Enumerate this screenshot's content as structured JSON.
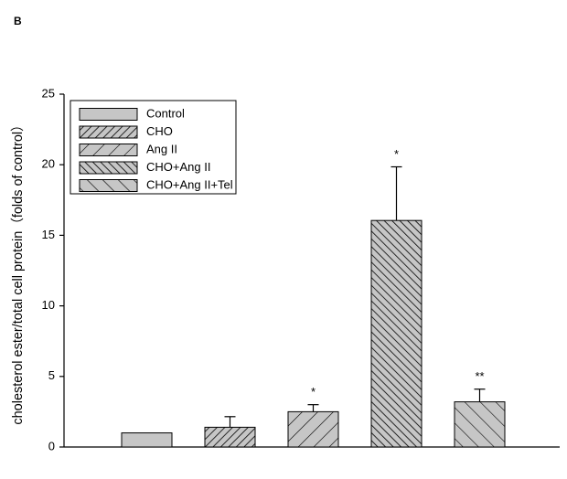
{
  "panel_label": "B",
  "chart_data": {
    "type": "bar",
    "ylabel": "cholesterol  ester/total cell protein（folds of control）",
    "categories": [
      "Control",
      "CHO",
      "Ang II",
      "CHO+Ang II",
      "CHO+Ang II+Tel"
    ],
    "values": [
      1.0,
      1.4,
      2.5,
      16.05,
      3.2
    ],
    "errors": [
      0,
      0.75,
      0.5,
      3.8,
      0.9
    ],
    "annotations": [
      null,
      null,
      "*",
      "*",
      "**"
    ],
    "patterns": [
      "solid",
      "dense-up",
      "sparse-up",
      "dense-down",
      "sparse-down"
    ],
    "color": "#c6c6c6",
    "ylim": [
      0,
      25
    ],
    "yticks": [
      0,
      5,
      10,
      15,
      20,
      25
    ],
    "legend": "upper left"
  }
}
